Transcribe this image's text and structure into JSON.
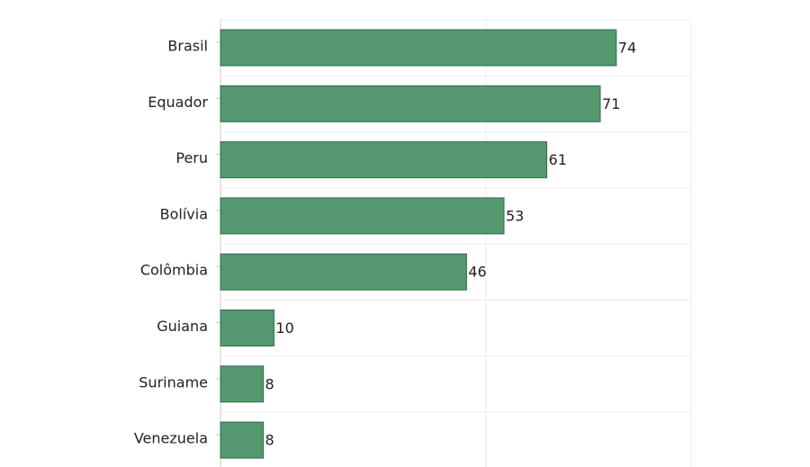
{
  "chart_data": {
    "type": "bar",
    "orientation": "horizontal",
    "categories": [
      "Brasil",
      "Equador",
      "Peru",
      "Bolívia",
      "Colômbia",
      "Guiana",
      "Suriname",
      "Venezuela"
    ],
    "values": [
      74,
      71,
      61,
      53,
      46,
      10,
      8,
      8
    ],
    "xlim": [
      0,
      88
    ],
    "grid": true,
    "legend": "none",
    "data_labels": true,
    "colors": {
      "bar": "#55976f",
      "bar_edge": "#2f6e48",
      "grid": "#ebebeb",
      "axis": "#cccccc",
      "text": "#222222"
    }
  }
}
